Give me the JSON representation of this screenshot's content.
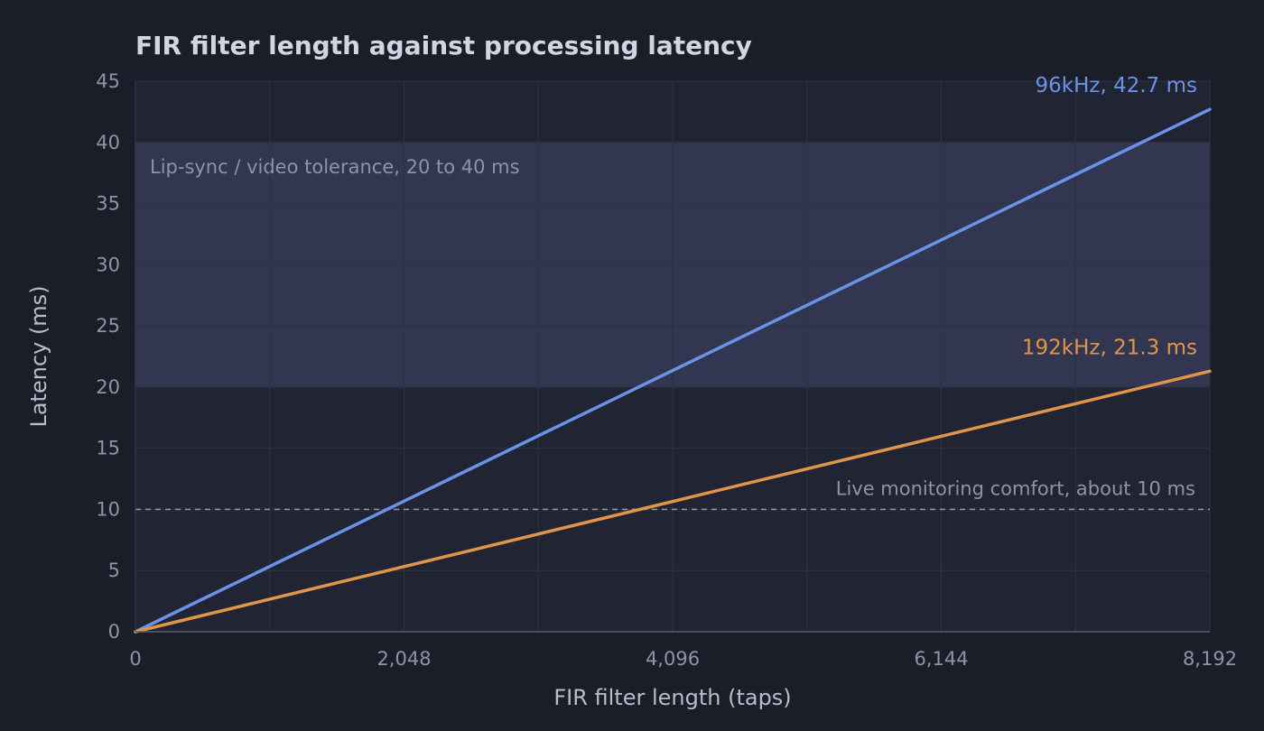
{
  "chart_data": {
    "type": "line",
    "title": "FIR filter length against processing latency",
    "xlabel": "FIR filter length (taps)",
    "ylabel": "Latency (ms)",
    "xlim": [
      0,
      8192
    ],
    "ylim": [
      0,
      45
    ],
    "x_ticks": [
      0,
      2048,
      4096,
      6144,
      8192
    ],
    "x_tick_labels": [
      "0",
      "2,048",
      "4,096",
      "6,144",
      "8,192"
    ],
    "y_ticks": [
      0,
      5,
      10,
      15,
      20,
      25,
      30,
      35,
      40,
      45
    ],
    "y_tick_labels": [
      "0",
      "5",
      "10",
      "15",
      "20",
      "25",
      "30",
      "35",
      "40",
      "45"
    ],
    "grid": true,
    "series": [
      {
        "label": "96kHz, 42.7 ms",
        "color": "#6a93e8",
        "x": [
          0,
          8192
        ],
        "y": [
          0,
          42.7
        ]
      },
      {
        "label": "192kHz, 21.3 ms",
        "color": "#e0954a",
        "x": [
          0,
          8192
        ],
        "y": [
          0,
          21.3
        ]
      }
    ],
    "bands": [
      {
        "label": "Lip-sync / video tolerance, 20 to 40 ms",
        "y_from": 20,
        "y_to": 40,
        "color": "#323650"
      }
    ],
    "reference_lines": [
      {
        "label": "Live monitoring comfort, about 10 ms",
        "y": 10,
        "style": "dashed",
        "color": "#8f93a6"
      }
    ]
  }
}
